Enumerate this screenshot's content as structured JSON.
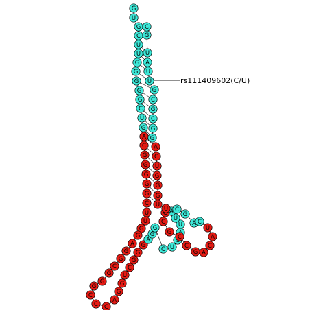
{
  "annotation": {
    "label": "rs111409602(C/U)"
  },
  "colors": {
    "mature": "#3de8d8",
    "precursor": "#e51b14",
    "stroke": "#000000",
    "backbone": "#222222"
  },
  "structure": {
    "nucleotides": [
      {
        "base": "G",
        "region": "mature"
      },
      {
        "base": "U",
        "region": "mature"
      },
      {
        "base": "G",
        "region": "mature"
      },
      {
        "base": "C",
        "region": "mature"
      },
      {
        "base": "U",
        "region": "mature"
      },
      {
        "base": "U",
        "region": "mature"
      },
      {
        "base": "G",
        "region": "mature"
      },
      {
        "base": "G",
        "region": "mature"
      },
      {
        "base": "G",
        "region": "mature"
      },
      {
        "base": "G",
        "region": "mature"
      },
      {
        "base": "G",
        "region": "mature"
      },
      {
        "base": "C",
        "region": "mature"
      },
      {
        "base": "U",
        "region": "mature"
      },
      {
        "base": "G",
        "region": "mature"
      },
      {
        "base": "A",
        "region": "precursor"
      },
      {
        "base": "C",
        "region": "precursor"
      },
      {
        "base": "G",
        "region": "precursor"
      },
      {
        "base": "G",
        "region": "precursor"
      },
      {
        "base": "G",
        "region": "precursor"
      },
      {
        "base": "G",
        "region": "precursor"
      },
      {
        "base": "G",
        "region": "precursor"
      },
      {
        "base": "C",
        "region": "precursor"
      },
      {
        "base": "U",
        "region": "precursor"
      },
      {
        "base": "U",
        "region": "precursor"
      },
      {
        "base": "G",
        "region": "precursor"
      },
      {
        "base": "G",
        "region": "precursor"
      },
      {
        "base": "A",
        "region": "precursor"
      },
      {
        "base": "G",
        "region": "precursor"
      },
      {
        "base": "G",
        "region": "precursor"
      },
      {
        "base": "C",
        "region": "precursor"
      },
      {
        "base": "G",
        "region": "precursor"
      },
      {
        "base": "G",
        "region": "precursor"
      },
      {
        "base": "G",
        "region": "precursor"
      },
      {
        "base": "C",
        "region": "precursor"
      },
      {
        "base": "C",
        "region": "precursor"
      },
      {
        "base": "C",
        "region": "precursor"
      },
      {
        "base": "A",
        "region": "precursor"
      },
      {
        "base": "G",
        "region": "precursor"
      },
      {
        "base": "G",
        "region": "precursor"
      },
      {
        "base": "U",
        "region": "precursor"
      },
      {
        "base": "C",
        "region": "precursor"
      },
      {
        "base": "G",
        "region": "precursor"
      },
      {
        "base": "G",
        "region": "precursor"
      },
      {
        "base": "G",
        "region": "precursor"
      },
      {
        "base": "A",
        "region": "mature"
      },
      {
        "base": "G",
        "region": "mature"
      },
      {
        "base": "G",
        "region": "mature"
      },
      {
        "base": "C",
        "region": "mature"
      },
      {
        "base": "U",
        "region": "mature"
      },
      {
        "base": "G",
        "region": "mature"
      },
      {
        "base": "A",
        "region": "mature"
      },
      {
        "base": "U",
        "region": "mature"
      },
      {
        "base": "U",
        "region": "mature"
      },
      {
        "base": "A",
        "region": "mature"
      },
      {
        "base": "C",
        "region": "mature"
      },
      {
        "base": "G",
        "region": "mature"
      },
      {
        "base": "A",
        "region": "mature"
      },
      {
        "base": "C",
        "region": "mature"
      },
      {
        "base": "U",
        "region": "precursor"
      },
      {
        "base": "A",
        "region": "precursor"
      },
      {
        "base": "C",
        "region": "precursor"
      },
      {
        "base": "A",
        "region": "precursor"
      },
      {
        "base": "G",
        "region": "precursor"
      },
      {
        "base": "C",
        "region": "precursor"
      },
      {
        "base": "C",
        "region": "precursor"
      },
      {
        "base": "G",
        "region": "precursor"
      },
      {
        "base": "C",
        "region": "precursor"
      },
      {
        "base": "G",
        "region": "precursor"
      },
      {
        "base": "U",
        "region": "precursor"
      },
      {
        "base": "U",
        "region": "precursor"
      },
      {
        "base": "G",
        "region": "precursor"
      },
      {
        "base": "G",
        "region": "precursor"
      },
      {
        "base": "G",
        "region": "precursor"
      },
      {
        "base": "U",
        "region": "precursor"
      },
      {
        "base": "C",
        "region": "precursor"
      },
      {
        "base": "A",
        "region": "precursor"
      },
      {
        "base": "G",
        "region": "mature"
      },
      {
        "base": "G",
        "region": "mature"
      },
      {
        "base": "C",
        "region": "mature"
      },
      {
        "base": "G",
        "region": "mature"
      },
      {
        "base": "C",
        "region": "mature"
      },
      {
        "base": "G",
        "region": "mature"
      },
      {
        "base": "U",
        "region": "mature"
      },
      {
        "base": "U",
        "region": "mature"
      },
      {
        "base": "A",
        "region": "mature"
      },
      {
        "base": "U",
        "region": "mature"
      },
      {
        "base": "G",
        "region": "mature"
      },
      {
        "base": "C",
        "region": "mature"
      }
    ],
    "snp_index": 82
  }
}
